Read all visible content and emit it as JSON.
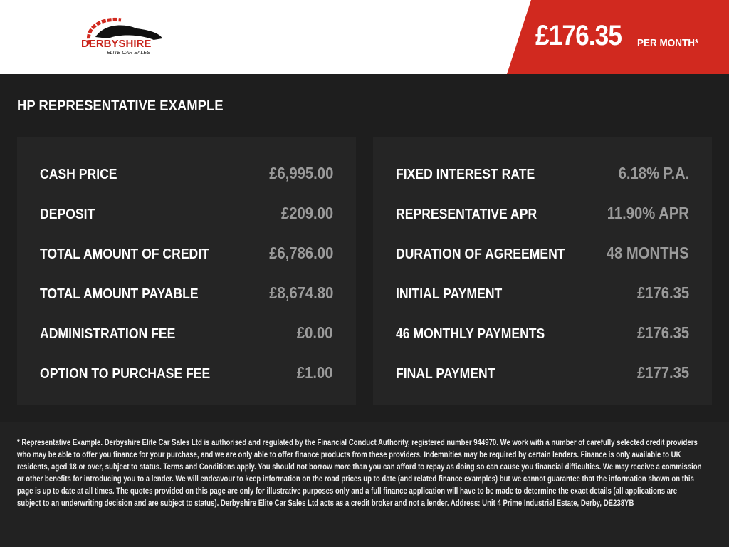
{
  "header": {
    "logo_text": "DERBYSHIRE",
    "logo_subtext": "ELITE CAR SALES",
    "price": "£176.35",
    "per_month": "PER MONTH*"
  },
  "title": "HP REPRESENTATIVE EXAMPLE",
  "left_rows": [
    {
      "label": "CASH PRICE",
      "value": "£6,995.00"
    },
    {
      "label": "DEPOSIT",
      "value": "£209.00"
    },
    {
      "label": "TOTAL AMOUNT OF CREDIT",
      "value": "£6,786.00"
    },
    {
      "label": "TOTAL AMOUNT PAYABLE",
      "value": "£8,674.80"
    },
    {
      "label": "ADMINISTRATION FEE",
      "value": "£0.00"
    },
    {
      "label": "OPTION TO PURCHASE FEE",
      "value": "£1.00"
    }
  ],
  "right_rows": [
    {
      "label": "FIXED INTEREST RATE",
      "value": "6.18% P.A."
    },
    {
      "label": "REPRESENTATIVE APR",
      "value": "11.90% APR"
    },
    {
      "label": "DURATION OF AGREEMENT",
      "value": "48 MONTHS"
    },
    {
      "label": "INITIAL PAYMENT",
      "value": "£176.35"
    },
    {
      "label": "46 MONTHLY PAYMENTS",
      "value": "£176.35"
    },
    {
      "label": "FINAL PAYMENT",
      "value": "£177.35"
    }
  ],
  "footer_lines": [
    "* Representative Example. Derbyshire Elite Car Sales Ltd is authorised and regulated by the Financial Conduct Authority, registered number 944970. We work with a number of carefully selected credit providers",
    "who may be able to offer you finance for your purchase, and we are only able to offer finance products from these providers. Indemnities may be required by certain lenders. Finance is only available to UK",
    "residents, aged 18 or over, subject to status. Terms and Conditions apply. You should not borrow more than you can afford to repay as doing so can cause you financial difficulties. We may receive a commission",
    "or other benefits for introducing you to a lender. We will endeavour to keep information on the road prices up to date (and related finance examples) but we cannot guarantee that the information shown on this",
    "page is up to date at all times. The quotes provided on this page are only for illustrative purposes only and a full finance application will have to be made to determine the exact details (all applications are",
    "subject to an underwriting decision and are subject to status). Derbyshire Elite Car Sales Ltd acts as a credit broker and not a lender. Address: Unit 4 Prime Industrial Estate, Derby, DE238YB"
  ]
}
